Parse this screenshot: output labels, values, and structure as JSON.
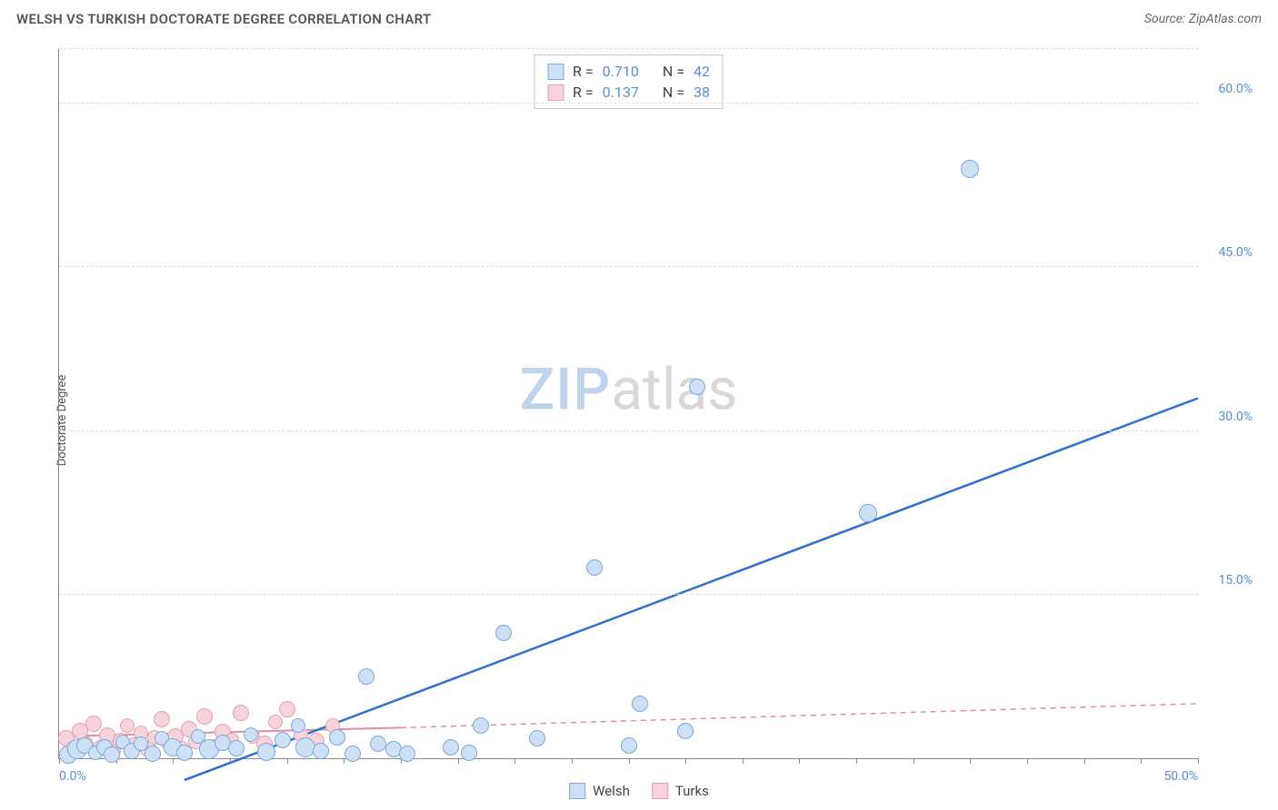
{
  "title": "WELSH VS TURKISH DOCTORATE DEGREE CORRELATION CHART",
  "source": "Source: ZipAtlas.com",
  "ylabel": "Doctorate Degree",
  "watermark": {
    "part1": "ZIP",
    "part2": "atlas"
  },
  "chart": {
    "type": "scatter",
    "xlim": [
      0,
      50
    ],
    "ylim": [
      0,
      65
    ],
    "xtick_minor_step": 2.5,
    "xtick_labels": [
      {
        "val": 0,
        "label": "0.0%"
      },
      {
        "val": 50,
        "label": "50.0%"
      }
    ],
    "ytick_labels": [
      {
        "val": 15,
        "label": "15.0%"
      },
      {
        "val": 30,
        "label": "30.0%"
      },
      {
        "val": 45,
        "label": "45.0%"
      },
      {
        "val": 60,
        "label": "60.0%"
      }
    ],
    "grid_color": "#e3e3e3",
    "background_color": "#ffffff",
    "marker_radius": 9,
    "stroke_width_blue": 2.5,
    "stroke_width_pink_solid": 2,
    "dash_pattern": "6,5"
  },
  "series": {
    "welsh": {
      "label": "Welsh",
      "R": "0.710",
      "N": "42",
      "fill": "#cde0f5",
      "stroke": "#7aa9db",
      "trend_color": "#2f6fd0",
      "trend": {
        "x1": 5.5,
        "y1": -2,
        "x2": 50,
        "y2": 33
      },
      "points": [
        {
          "x": 0.4,
          "y": 0.3,
          "r": 10
        },
        {
          "x": 0.8,
          "y": 0.8,
          "r": 11
        },
        {
          "x": 1.1,
          "y": 1.2,
          "r": 9
        },
        {
          "x": 1.6,
          "y": 0.5,
          "r": 8
        },
        {
          "x": 2.0,
          "y": 1.0,
          "r": 9
        },
        {
          "x": 2.3,
          "y": 0.3,
          "r": 9
        },
        {
          "x": 2.8,
          "y": 1.5,
          "r": 8
        },
        {
          "x": 3.2,
          "y": 0.7,
          "r": 9
        },
        {
          "x": 3.6,
          "y": 1.3,
          "r": 8
        },
        {
          "x": 4.1,
          "y": 0.4,
          "r": 9
        },
        {
          "x": 4.5,
          "y": 1.8,
          "r": 8
        },
        {
          "x": 5.0,
          "y": 1.0,
          "r": 10
        },
        {
          "x": 5.5,
          "y": 0.5,
          "r": 9
        },
        {
          "x": 6.1,
          "y": 2.0,
          "r": 8
        },
        {
          "x": 6.6,
          "y": 0.8,
          "r": 11
        },
        {
          "x": 7.2,
          "y": 1.4,
          "r": 9
        },
        {
          "x": 7.8,
          "y": 0.9,
          "r": 9
        },
        {
          "x": 8.4,
          "y": 2.2,
          "r": 8
        },
        {
          "x": 9.1,
          "y": 0.6,
          "r": 10
        },
        {
          "x": 9.8,
          "y": 1.7,
          "r": 9
        },
        {
          "x": 10.5,
          "y": 3.0,
          "r": 8
        },
        {
          "x": 10.8,
          "y": 1.0,
          "r": 11
        },
        {
          "x": 11.5,
          "y": 0.7,
          "r": 9
        },
        {
          "x": 12.2,
          "y": 1.9,
          "r": 9
        },
        {
          "x": 12.9,
          "y": 0.4,
          "r": 9
        },
        {
          "x": 13.5,
          "y": 7.5,
          "r": 9
        },
        {
          "x": 14.0,
          "y": 1.3,
          "r": 9
        },
        {
          "x": 14.7,
          "y": 0.8,
          "r": 9
        },
        {
          "x": 15.3,
          "y": 0.4,
          "r": 9
        },
        {
          "x": 17.2,
          "y": 1.0,
          "r": 9
        },
        {
          "x": 18.0,
          "y": 0.5,
          "r": 9
        },
        {
          "x": 18.5,
          "y": 3.0,
          "r": 9
        },
        {
          "x": 19.5,
          "y": 11.5,
          "r": 9
        },
        {
          "x": 21.0,
          "y": 1.8,
          "r": 9
        },
        {
          "x": 23.5,
          "y": 17.5,
          "r": 9
        },
        {
          "x": 25.0,
          "y": 1.2,
          "r": 9
        },
        {
          "x": 25.5,
          "y": 5.0,
          "r": 9
        },
        {
          "x": 27.5,
          "y": 2.5,
          "r": 9
        },
        {
          "x": 28.0,
          "y": 34.0,
          "r": 9
        },
        {
          "x": 35.5,
          "y": 22.5,
          "r": 10
        },
        {
          "x": 40.0,
          "y": 54.0,
          "r": 10
        }
      ]
    },
    "turks": {
      "label": "Turks",
      "R": "0.137",
      "N": "38",
      "fill": "#f7d4dc",
      "stroke": "#e6a0b0",
      "trend_color": "#e28da0",
      "trend_solid": {
        "x1": 0,
        "y1": 2.0,
        "x2": 15,
        "y2": 2.8
      },
      "trend_dash": {
        "x1": 15,
        "y1": 2.8,
        "x2": 50,
        "y2": 5.0
      },
      "points": [
        {
          "x": 0.3,
          "y": 1.8,
          "r": 9
        },
        {
          "x": 0.6,
          "y": 0.9,
          "r": 8
        },
        {
          "x": 0.9,
          "y": 2.5,
          "r": 9
        },
        {
          "x": 1.2,
          "y": 1.3,
          "r": 8
        },
        {
          "x": 1.5,
          "y": 3.2,
          "r": 9
        },
        {
          "x": 1.8,
          "y": 1.0,
          "r": 8
        },
        {
          "x": 2.1,
          "y": 2.1,
          "r": 9
        },
        {
          "x": 2.4,
          "y": 0.7,
          "r": 8
        },
        {
          "x": 2.7,
          "y": 1.6,
          "r": 9
        },
        {
          "x": 3.0,
          "y": 3.0,
          "r": 8
        },
        {
          "x": 3.3,
          "y": 1.2,
          "r": 9
        },
        {
          "x": 3.6,
          "y": 2.3,
          "r": 8
        },
        {
          "x": 3.9,
          "y": 0.8,
          "r": 9
        },
        {
          "x": 4.2,
          "y": 1.9,
          "r": 8
        },
        {
          "x": 4.5,
          "y": 3.6,
          "r": 9
        },
        {
          "x": 4.8,
          "y": 1.4,
          "r": 8
        },
        {
          "x": 5.1,
          "y": 2.0,
          "r": 9
        },
        {
          "x": 5.4,
          "y": 0.9,
          "r": 8
        },
        {
          "x": 5.7,
          "y": 2.7,
          "r": 9
        },
        {
          "x": 6.0,
          "y": 1.5,
          "r": 8
        },
        {
          "x": 6.4,
          "y": 3.8,
          "r": 9
        },
        {
          "x": 6.8,
          "y": 1.1,
          "r": 8
        },
        {
          "x": 7.2,
          "y": 2.4,
          "r": 9
        },
        {
          "x": 7.6,
          "y": 1.7,
          "r": 8
        },
        {
          "x": 8.0,
          "y": 4.2,
          "r": 9
        },
        {
          "x": 8.5,
          "y": 2.0,
          "r": 8
        },
        {
          "x": 9.0,
          "y": 1.3,
          "r": 9
        },
        {
          "x": 9.5,
          "y": 3.3,
          "r": 8
        },
        {
          "x": 10.0,
          "y": 4.5,
          "r": 9
        },
        {
          "x": 10.6,
          "y": 2.2,
          "r": 8
        },
        {
          "x": 11.3,
          "y": 1.6,
          "r": 9
        },
        {
          "x": 12.0,
          "y": 3.0,
          "r": 8
        }
      ]
    }
  },
  "stats_box": {
    "rows": [
      {
        "swatch_fill": "#cde0f5",
        "swatch_stroke": "#7aa9db",
        "r_label": "R =",
        "r_val": "0.710",
        "n_label": "N =",
        "n_val": "42"
      },
      {
        "swatch_fill": "#f7d4dc",
        "swatch_stroke": "#e6a0b0",
        "r_label": "R =",
        "r_val": "0.137",
        "n_label": "N =",
        "n_val": "38"
      }
    ]
  },
  "bottom_legend": [
    {
      "swatch_fill": "#cde0f5",
      "swatch_stroke": "#7aa9db",
      "label": "Welsh"
    },
    {
      "swatch_fill": "#f7d4dc",
      "swatch_stroke": "#e6a0b0",
      "label": "Turks"
    }
  ]
}
